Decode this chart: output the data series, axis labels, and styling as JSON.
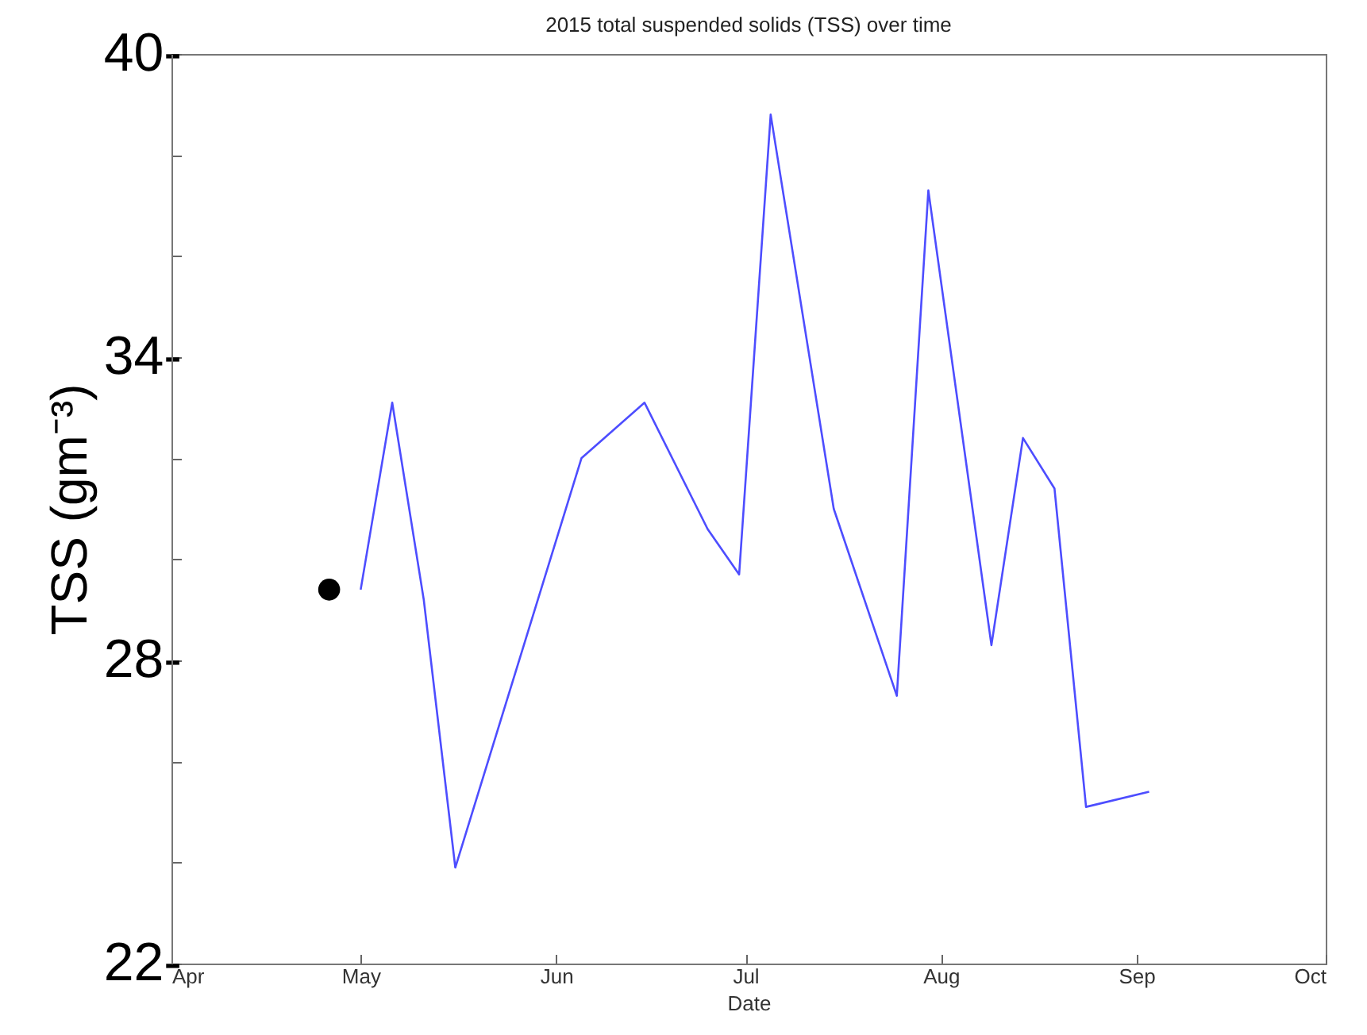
{
  "chart_data": {
    "type": "line",
    "title": "2015 total suspended solids (TSS) over time",
    "xlabel": "Date",
    "ylabel": "TSS (gm⁻³)",
    "xlim": [
      "2015-04-01",
      "2015-10-01"
    ],
    "xticks": [
      {
        "value": "2015-04-01",
        "label": "Apr"
      },
      {
        "value": "2015-05-01",
        "label": "May"
      },
      {
        "value": "2015-06-01",
        "label": "Jun"
      },
      {
        "value": "2015-07-01",
        "label": "Jul"
      },
      {
        "value": "2015-08-01",
        "label": "Aug"
      },
      {
        "value": "2015-09-01",
        "label": "Sep"
      },
      {
        "value": "2015-10-01",
        "label": "Oct"
      }
    ],
    "ylim": [
      22,
      40
    ],
    "yticks": [
      {
        "value": 22,
        "label": "22-"
      },
      {
        "value": 24,
        "label": null
      },
      {
        "value": 26,
        "label": null
      },
      {
        "value": 28,
        "label": "28-"
      },
      {
        "value": 30,
        "label": null
      },
      {
        "value": 32,
        "label": null
      },
      {
        "value": 34,
        "label": "34-"
      },
      {
        "value": 36,
        "label": null
      },
      {
        "value": 38,
        "label": null
      },
      {
        "value": 40,
        "label": "40-"
      }
    ],
    "series": [
      {
        "color": "#4d4dff",
        "x": [
          "2015-05-01",
          "2015-05-06",
          "2015-05-11",
          "2015-05-16",
          "2015-06-05",
          "2015-06-15",
          "2015-06-25",
          "2015-06-30",
          "2015-07-05",
          "2015-07-15",
          "2015-07-25",
          "2015-07-30",
          "2015-08-09",
          "2015-08-14",
          "2015-08-19",
          "2015-08-24",
          "2015-09-03"
        ],
        "values": [
          29.4,
          33.1,
          29.2,
          23.9,
          32.0,
          33.1,
          30.6,
          29.7,
          38.8,
          31.0,
          27.3,
          37.3,
          28.3,
          32.4,
          31.4,
          25.1,
          25.4
        ]
      },
      {
        "type": "scatter",
        "color": "#000000",
        "marker": "circle",
        "x": [
          "2015-04-26"
        ],
        "values": [
          29.4
        ]
      }
    ]
  }
}
